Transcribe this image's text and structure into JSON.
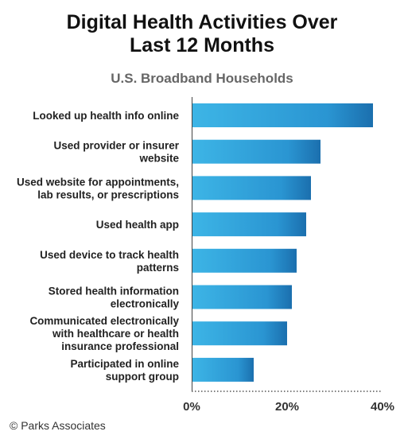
{
  "title_line1": "Digital Health Activities Over",
  "title_line2": "Last 12 Months",
  "subtitle": "U.S. Broadband Households",
  "credit": "© Parks Associates",
  "colors": {
    "bar_light": "#3db5e6",
    "bar_dark": "#1b6fae",
    "text": "#222222"
  },
  "chart_data": {
    "type": "bar",
    "orientation": "horizontal",
    "title": "Digital Health Activities Over Last 12 Months",
    "subtitle": "U.S. Broadband Households",
    "categories": [
      [
        "Looked up health info online"
      ],
      [
        "Used provider or insurer",
        "website"
      ],
      [
        "Used website for appointments,",
        "lab results, or prescriptions"
      ],
      [
        "Used health app"
      ],
      [
        "Used device to track health",
        "patterns"
      ],
      [
        "Stored health information",
        "electronically"
      ],
      [
        "Communicated electronically",
        "with healthcare or health",
        "insurance professional"
      ],
      [
        "Participated in online",
        "support group"
      ]
    ],
    "values": [
      38,
      27,
      25,
      24,
      22,
      21,
      20,
      13
    ],
    "xlim": [
      0,
      40
    ],
    "xticks": [
      0,
      20,
      40
    ],
    "xtick_labels": [
      "0%",
      "20%",
      "40%"
    ],
    "grid": false
  }
}
